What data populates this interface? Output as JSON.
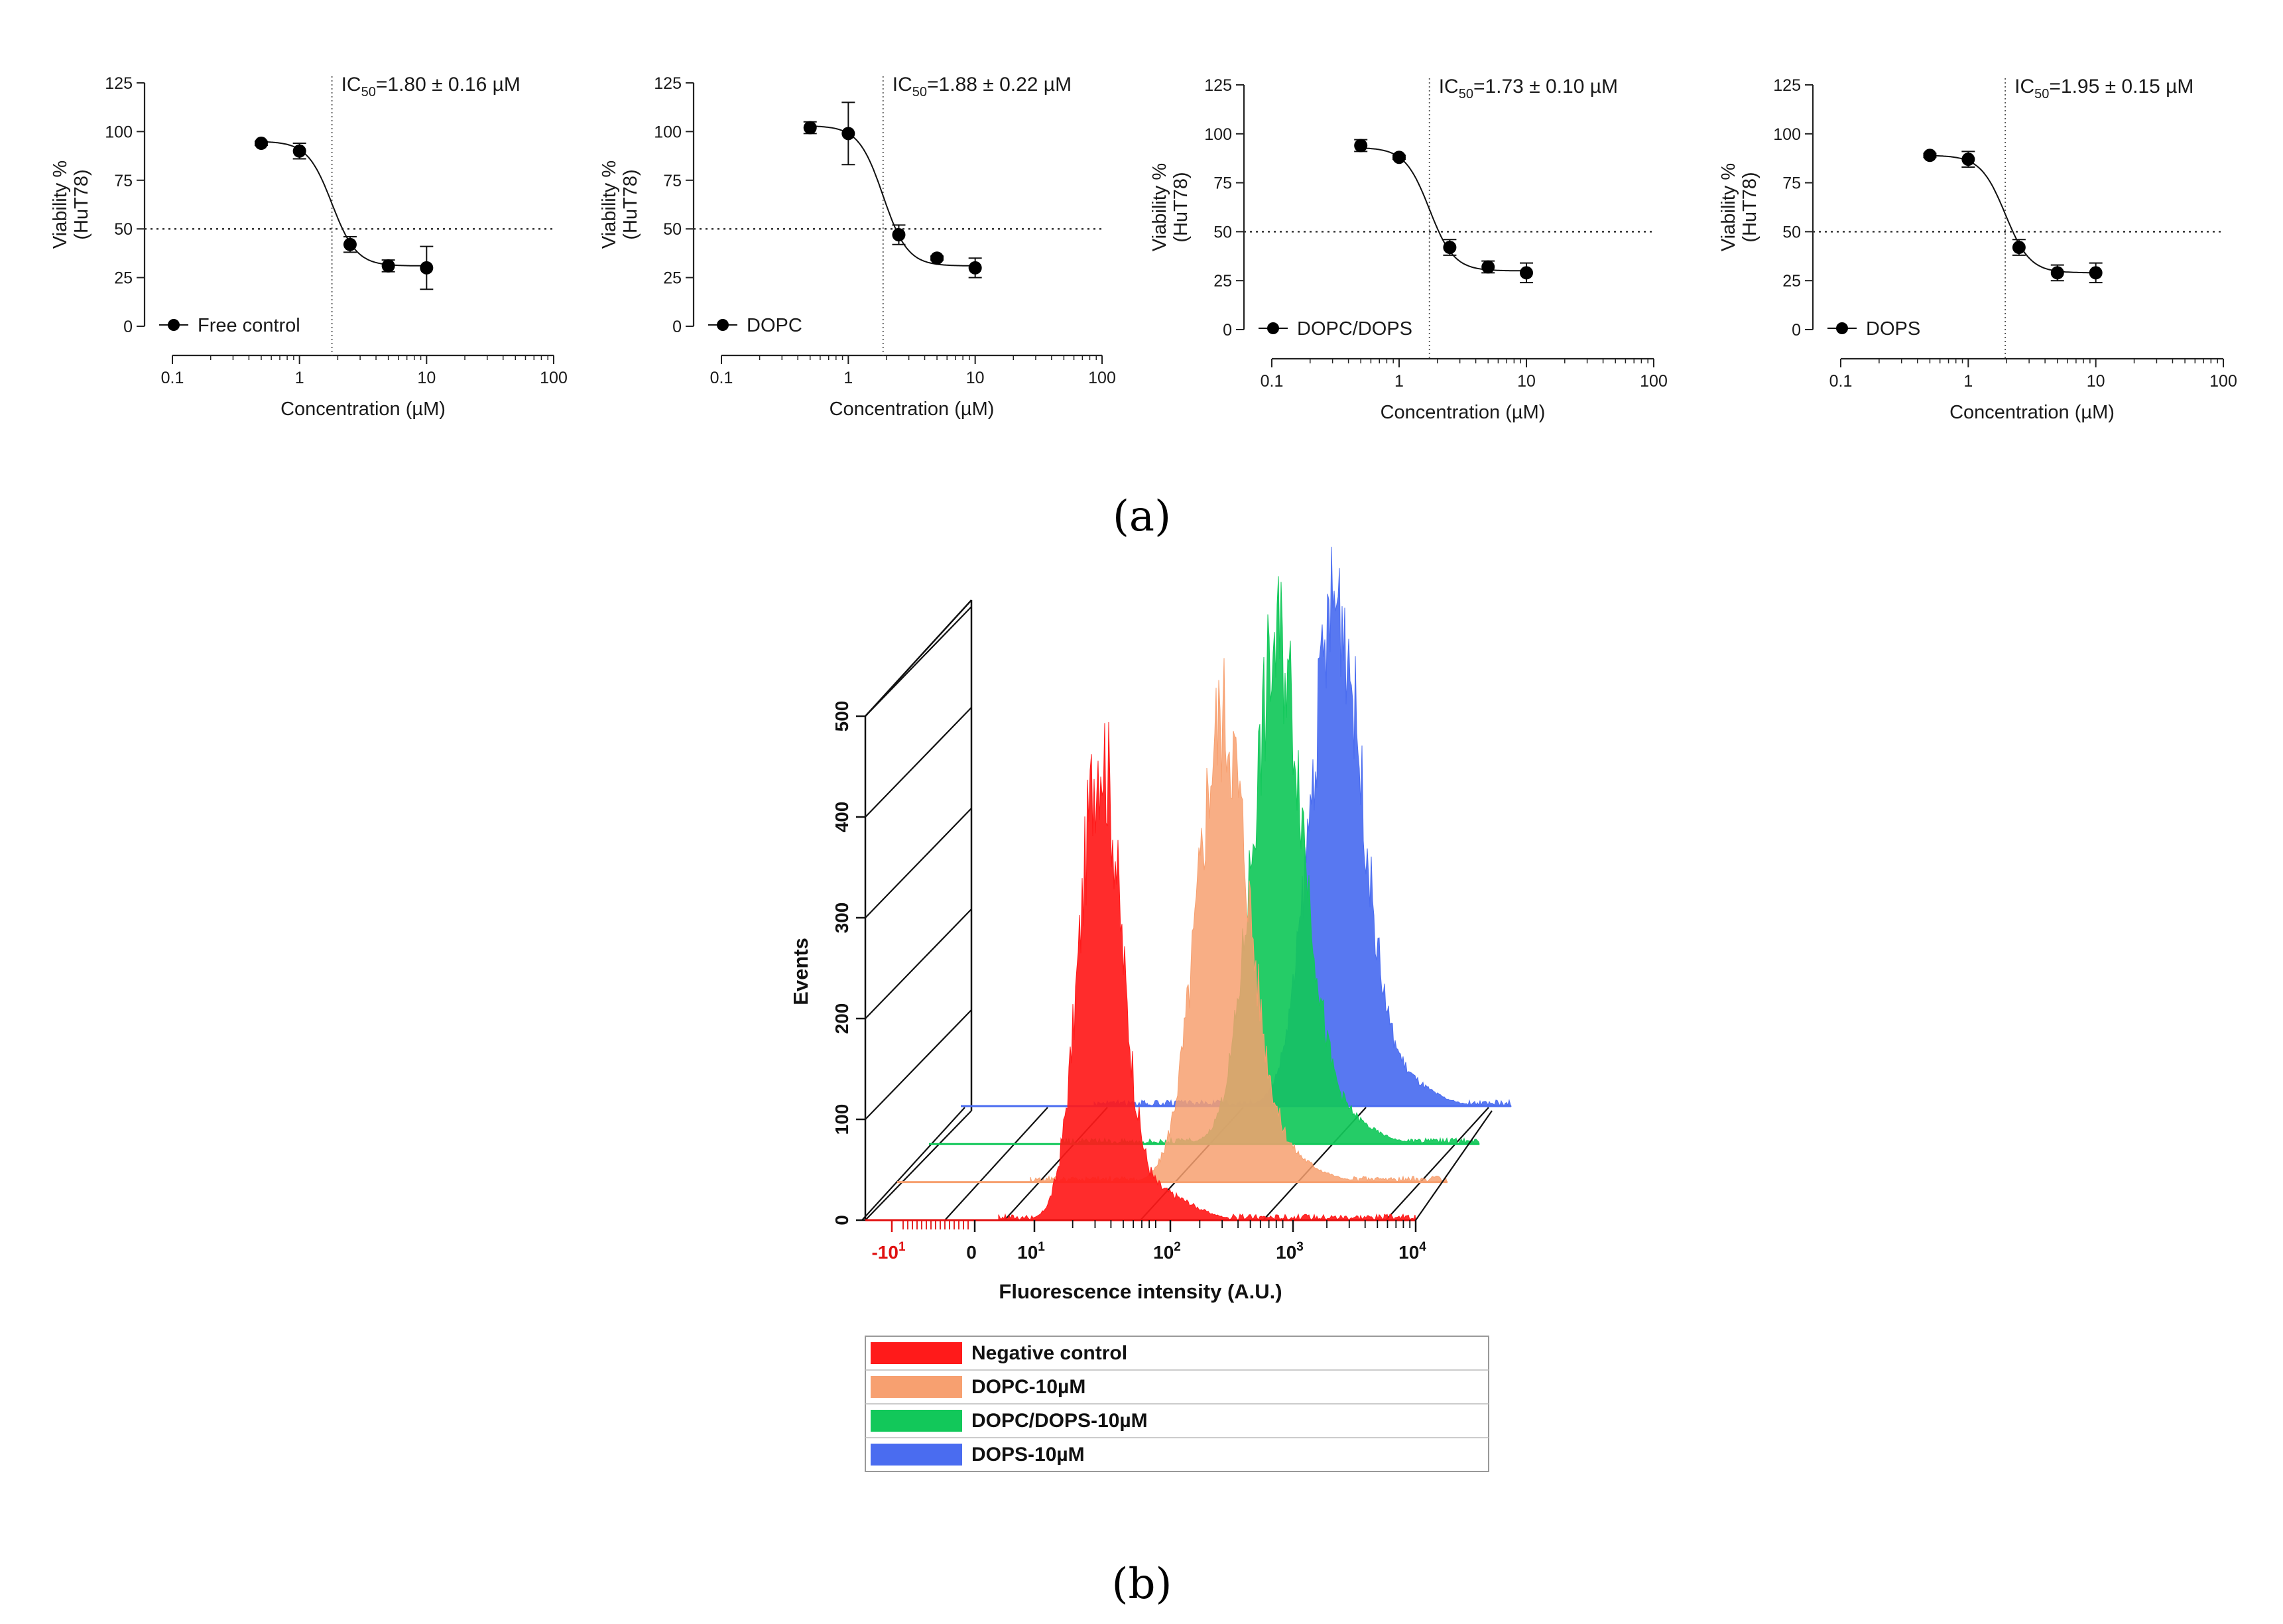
{
  "panel_labels": {
    "a": "(a)",
    "b": "(b)"
  },
  "chart_data": [
    {
      "type": "scatter",
      "panel": "a",
      "ylabel_line1": "Viability %",
      "ylabel_line2": "(HuT78)",
      "xlabel": "Concentration (µM)",
      "xscale": "log",
      "xlim": [
        0.1,
        100
      ],
      "ylim": [
        0,
        125
      ],
      "xticks": [
        "0.1",
        "1",
        "10",
        "100"
      ],
      "yticks": [
        "0",
        "25",
        "50",
        "75",
        "100",
        "125"
      ],
      "reference_line_y": 50,
      "ic50": 1.8,
      "annotation_prefix": "IC",
      "annotation_sub": "50",
      "annotation_value": "=1.80 ± 0.16 µM",
      "legend": "Free control",
      "fit": {
        "top": 95,
        "bottom": 31,
        "hill": 4.5
      },
      "x": [
        0.5,
        1,
        2.5,
        5,
        10
      ],
      "y": [
        94,
        90,
        42,
        31,
        30
      ],
      "err": [
        1,
        4,
        4,
        3,
        11
      ]
    },
    {
      "type": "scatter",
      "panel": "a",
      "ylabel_line1": "Viability %",
      "ylabel_line2": "(HuT78)",
      "xlabel": "Concentration (µM)",
      "xscale": "log",
      "xlim": [
        0.1,
        100
      ],
      "ylim": [
        0,
        125
      ],
      "xticks": [
        "0.1",
        "1",
        "10",
        "100"
      ],
      "yticks": [
        "0",
        "25",
        "50",
        "75",
        "100",
        "125"
      ],
      "reference_line_y": 50,
      "ic50": 1.88,
      "annotation_prefix": "IC",
      "annotation_sub": "50",
      "annotation_value": "=1.88 ± 0.22 µM",
      "legend": "DOPC",
      "fit": {
        "top": 103,
        "bottom": 31,
        "hill": 4.5
      },
      "x": [
        0.5,
        1,
        2.5,
        5,
        10
      ],
      "y": [
        102,
        99,
        47,
        35,
        30
      ],
      "err": [
        3,
        16,
        5,
        1,
        5
      ]
    },
    {
      "type": "scatter",
      "panel": "a",
      "ylabel_line1": "Viability %",
      "ylabel_line2": "(HuT78)",
      "xlabel": "Concentration (µM)",
      "xscale": "log",
      "xlim": [
        0.1,
        100
      ],
      "ylim": [
        0,
        125
      ],
      "xticks": [
        "0.1",
        "1",
        "10",
        "100"
      ],
      "yticks": [
        "0",
        "25",
        "50",
        "75",
        "100",
        "125"
      ],
      "reference_line_y": 50,
      "ic50": 1.73,
      "annotation_prefix": "IC",
      "annotation_sub": "50",
      "annotation_value": "=1.73 ± 0.10 µM",
      "legend": "DOPC/DOPS",
      "fit": {
        "top": 93,
        "bottom": 30,
        "hill": 4.5
      },
      "x": [
        0.5,
        1,
        2.5,
        5,
        10
      ],
      "y": [
        94,
        88,
        42,
        32,
        29
      ],
      "err": [
        3,
        1,
        4,
        3,
        5
      ]
    },
    {
      "type": "scatter",
      "panel": "a",
      "ylabel_line1": "Viability %",
      "ylabel_line2": "(HuT78)",
      "xlabel": "Concentration (µM)",
      "xscale": "log",
      "xlim": [
        0.1,
        100
      ],
      "ylim": [
        0,
        125
      ],
      "xticks": [
        "0.1",
        "1",
        "10",
        "100"
      ],
      "yticks": [
        "0",
        "25",
        "50",
        "75",
        "100",
        "125"
      ],
      "reference_line_y": 50,
      "ic50": 1.95,
      "annotation_prefix": "IC",
      "annotation_sub": "50",
      "annotation_value": "=1.95 ± 0.15 µM",
      "legend": "DOPS",
      "fit": {
        "top": 89,
        "bottom": 29,
        "hill": 4.5
      },
      "x": [
        0.5,
        1,
        2.5,
        5,
        10
      ],
      "y": [
        89,
        87,
        42,
        29,
        29
      ],
      "err": [
        1,
        4,
        4,
        4,
        5
      ]
    },
    {
      "type": "area",
      "panel": "b",
      "style": "3d-offset-histogram",
      "xlabel": "Fluorescence intensity (A.U.)",
      "ylabel": "Events",
      "ylim": [
        0,
        500
      ],
      "yticks": [
        "0",
        "100",
        "200",
        "300",
        "400",
        "500"
      ],
      "xticks": [
        {
          "base": "-10",
          "exp": "1",
          "negative": true
        },
        {
          "base": "0",
          "exp": ""
        },
        {
          "base": "10",
          "exp": "1"
        },
        {
          "base": "10",
          "exp": "2"
        },
        {
          "base": "10",
          "exp": "3"
        },
        {
          "base": "10",
          "exp": "4"
        }
      ],
      "xscale": "biexponential",
      "series": [
        {
          "name": "Negative control",
          "color": "#ff1a1a",
          "peak_x": 33,
          "peak_events": 477
        },
        {
          "name": "DOPC-10µM",
          "color": "#f7a070",
          "peak_x": 170,
          "peak_events": 470
        },
        {
          "name": "DOPC/DOPS-10µM",
          "color": "#12c85a",
          "peak_x": 260,
          "peak_events": 505
        },
        {
          "name": "DOPS-10µM",
          "color": "#4a6cf0",
          "peak_x": 420,
          "peak_events": 510
        }
      ]
    }
  ]
}
